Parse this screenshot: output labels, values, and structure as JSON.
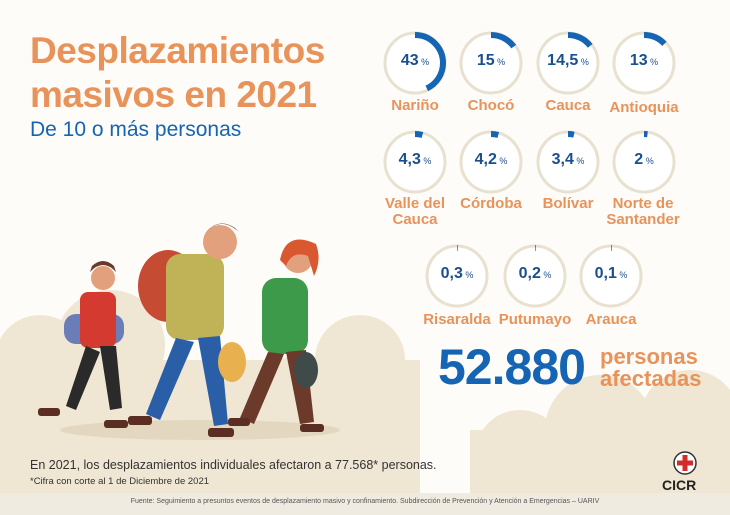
{
  "header": {
    "title_line1": "Desplazamientos",
    "title_line2": "masivos en 2021",
    "subtitle": "De 10 o más personas"
  },
  "chart_data": {
    "type": "pie",
    "unit": "%",
    "slices": [
      {
        "label": "Nariño",
        "value": 43,
        "display": "43"
      },
      {
        "label": "Chocó",
        "value": 15,
        "display": "15"
      },
      {
        "label": "Cauca",
        "value": 14.5,
        "display": "14,5"
      },
      {
        "label": "Antioquia",
        "value": 13,
        "display": "13"
      },
      {
        "label": "Valle del Cauca",
        "value": 4.3,
        "display": "4,3"
      },
      {
        "label": "Córdoba",
        "value": 4.2,
        "display": "4,2"
      },
      {
        "label": "Bolívar",
        "value": 3.4,
        "display": "3,4"
      },
      {
        "label": "Norte de Santander",
        "value": 2,
        "display": "2"
      },
      {
        "label": "Risaralda",
        "value": 0.3,
        "display": "0,3"
      },
      {
        "label": "Putumayo",
        "value": 0.2,
        "display": "0,2"
      },
      {
        "label": "Arauca",
        "value": 0.1,
        "display": "0,1"
      }
    ],
    "colors": {
      "arc": "#1565b4",
      "track": "#e9e1d0",
      "value_text": "#1a4f8f",
      "label_text": "#e8935a"
    }
  },
  "summary": {
    "total": "52.880",
    "label_line1": "personas",
    "label_line2": "afectadas"
  },
  "notes": {
    "individual": "En 2021, los desplazamientos individuales afectaron a 77.568* personas.",
    "cutoff": "*Cifra con corte al 1 de Diciembre de 2021"
  },
  "footer": {
    "source": "Fuente: Seguimiento a presuntos eventos de desplazamiento masivo y confinamiento. Subdirección de Prevención y Atención a Emergencias – UARIV"
  },
  "brand": {
    "name": "CICR"
  }
}
